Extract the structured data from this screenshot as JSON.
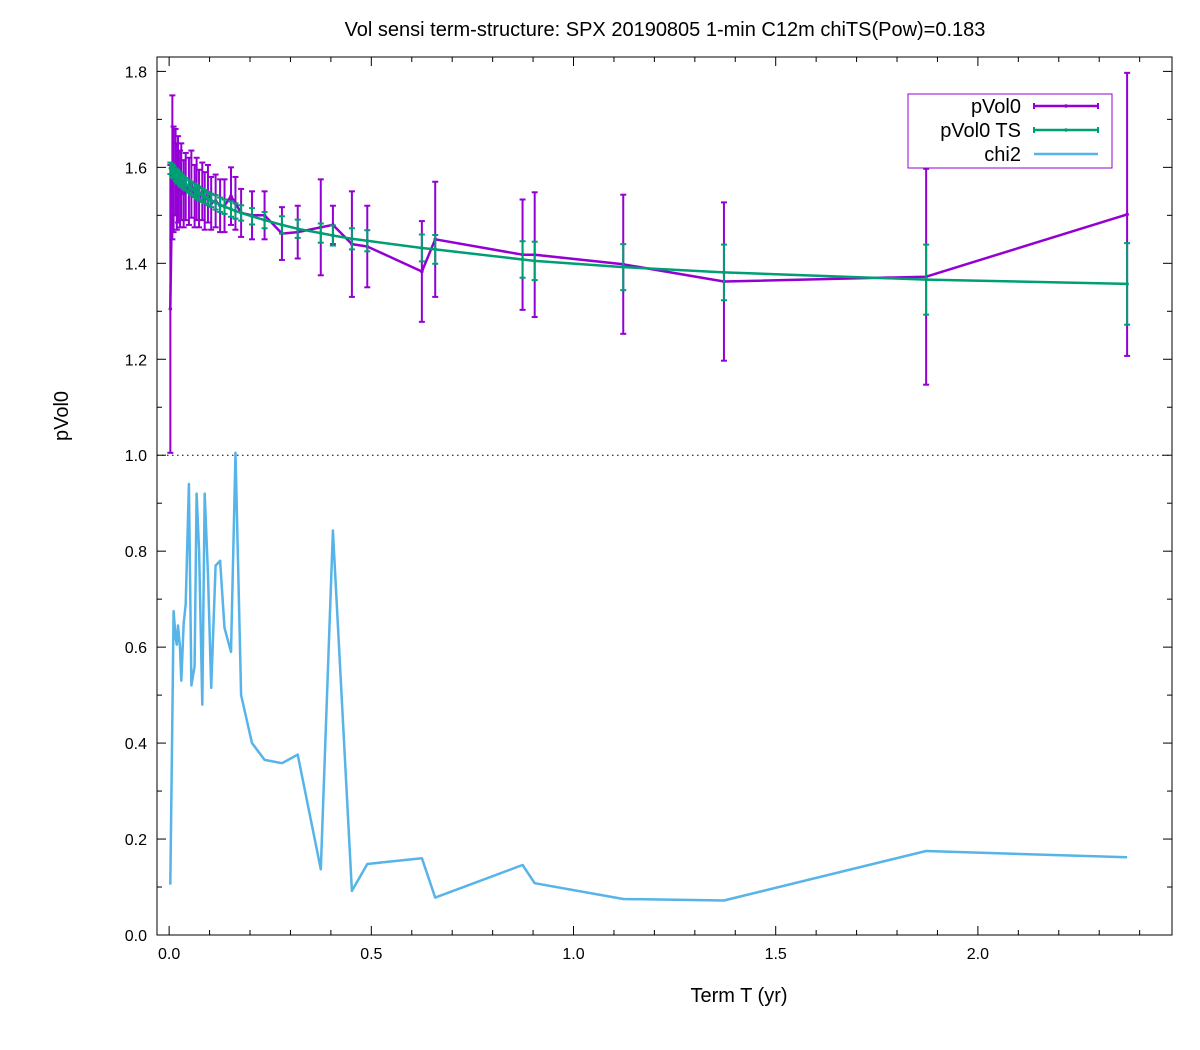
{
  "chart_data": {
    "type": "line",
    "title": "Vol sensi term-structure:  SPX  20190805  1-min  C12m  chiTS(Pow)=0.183",
    "xlabel": "Term T (yr)",
    "ylabel": "pVol0",
    "xlim": [
      -0.03,
      2.48
    ],
    "ylim": [
      0.0,
      1.83
    ],
    "xticks": [
      0.0,
      0.5,
      1.0,
      1.5,
      2.0
    ],
    "xtick_labels": [
      "0.0",
      "0.5",
      "1.0",
      "1.5",
      "2.0"
    ],
    "yticks": [
      0.0,
      0.2,
      0.4,
      0.6,
      0.8,
      1.0,
      1.2,
      1.4,
      1.6,
      1.8
    ],
    "ytick_labels": [
      "0.0",
      "0.2",
      "0.4",
      "0.6",
      "0.8",
      "1.0",
      "1.2",
      "1.4",
      "1.6",
      "1.8"
    ],
    "grid": false,
    "reference_line": {
      "y": 1.0,
      "style": "dotted"
    },
    "legend_position": "top-right",
    "series": [
      {
        "name": "pVol0",
        "color": "#9400d3",
        "style": "line-errorbars",
        "x": [
          0.003,
          0.008,
          0.011,
          0.016,
          0.019,
          0.022,
          0.027,
          0.03,
          0.036,
          0.041,
          0.049,
          0.055,
          0.063,
          0.068,
          0.074,
          0.082,
          0.088,
          0.096,
          0.104,
          0.115,
          0.126,
          0.137,
          0.153,
          0.164,
          0.178,
          0.205,
          0.236,
          0.279,
          0.318,
          0.375,
          0.405,
          0.452,
          0.49,
          0.625,
          0.658,
          0.874,
          0.904,
          1.123,
          1.372,
          1.872,
          2.369
        ],
        "y": [
          1.305,
          1.6,
          1.575,
          1.59,
          1.56,
          1.575,
          1.555,
          1.57,
          1.545,
          1.56,
          1.55,
          1.565,
          1.54,
          1.555,
          1.535,
          1.55,
          1.53,
          1.545,
          1.525,
          1.53,
          1.52,
          1.52,
          1.54,
          1.525,
          1.505,
          1.5,
          1.5,
          1.462,
          1.465,
          1.475,
          1.48,
          1.44,
          1.435,
          1.383,
          1.45,
          1.418,
          1.418,
          1.398,
          1.362,
          1.372,
          1.502
        ],
        "err": [
          0.3,
          0.15,
          0.11,
          0.09,
          0.09,
          0.09,
          0.08,
          0.08,
          0.07,
          0.07,
          0.07,
          0.07,
          0.065,
          0.065,
          0.06,
          0.06,
          0.06,
          0.06,
          0.055,
          0.055,
          0.055,
          0.055,
          0.06,
          0.055,
          0.05,
          0.05,
          0.05,
          0.055,
          0.055,
          0.1,
          0.04,
          0.11,
          0.085,
          0.105,
          0.12,
          0.115,
          0.13,
          0.145,
          0.165,
          0.225,
          0.295
        ]
      },
      {
        "name": "pVol0 TS",
        "color": "#009e73",
        "style": "line-errorbars",
        "x": [
          0.003,
          0.008,
          0.011,
          0.016,
          0.019,
          0.022,
          0.027,
          0.03,
          0.036,
          0.041,
          0.049,
          0.055,
          0.063,
          0.068,
          0.074,
          0.082,
          0.088,
          0.096,
          0.104,
          0.115,
          0.126,
          0.137,
          0.153,
          0.164,
          0.178,
          0.205,
          0.236,
          0.279,
          0.318,
          0.375,
          0.405,
          0.452,
          0.49,
          0.625,
          0.658,
          0.874,
          0.904,
          1.123,
          1.372,
          1.872,
          2.369
        ],
        "y": [
          1.598,
          1.593,
          1.59,
          1.585,
          1.582,
          1.579,
          1.575,
          1.572,
          1.568,
          1.565,
          1.56,
          1.556,
          1.552,
          1.549,
          1.546,
          1.542,
          1.539,
          1.535,
          1.531,
          1.527,
          1.522,
          1.518,
          1.513,
          1.509,
          1.505,
          1.498,
          1.49,
          1.48,
          1.472,
          1.463,
          1.458,
          1.451,
          1.447,
          1.432,
          1.429,
          1.408,
          1.405,
          1.392,
          1.381,
          1.366,
          1.357
        ],
        "err": [
          0.012,
          0.013,
          0.013,
          0.013,
          0.013,
          0.013,
          0.013,
          0.013,
          0.013,
          0.013,
          0.013,
          0.014,
          0.014,
          0.014,
          0.014,
          0.014,
          0.014,
          0.014,
          0.014,
          0.015,
          0.015,
          0.015,
          0.016,
          0.016,
          0.016,
          0.017,
          0.017,
          0.018,
          0.019,
          0.02,
          0.021,
          0.022,
          0.022,
          0.028,
          0.03,
          0.038,
          0.04,
          0.048,
          0.058,
          0.073,
          0.085
        ]
      },
      {
        "name": "chi2",
        "color": "#56b4e9",
        "style": "line",
        "x": [
          0.003,
          0.008,
          0.011,
          0.016,
          0.019,
          0.022,
          0.027,
          0.03,
          0.036,
          0.041,
          0.049,
          0.055,
          0.063,
          0.068,
          0.074,
          0.082,
          0.088,
          0.096,
          0.104,
          0.115,
          0.126,
          0.137,
          0.153,
          0.164,
          0.178,
          0.205,
          0.236,
          0.279,
          0.318,
          0.375,
          0.405,
          0.452,
          0.49,
          0.625,
          0.658,
          0.874,
          0.904,
          1.123,
          1.372,
          1.872,
          2.369
        ],
        "y": [
          0.105,
          0.46,
          0.675,
          0.62,
          0.605,
          0.645,
          0.6,
          0.53,
          0.65,
          0.69,
          0.94,
          0.52,
          0.56,
          0.92,
          0.8,
          0.48,
          0.92,
          0.75,
          0.515,
          0.77,
          0.78,
          0.64,
          0.59,
          1.005,
          0.5,
          0.4,
          0.365,
          0.358,
          0.376,
          0.137,
          0.843,
          0.092,
          0.148,
          0.16,
          0.078,
          0.146,
          0.108,
          0.075,
          0.072,
          0.175,
          0.162
        ]
      }
    ]
  }
}
